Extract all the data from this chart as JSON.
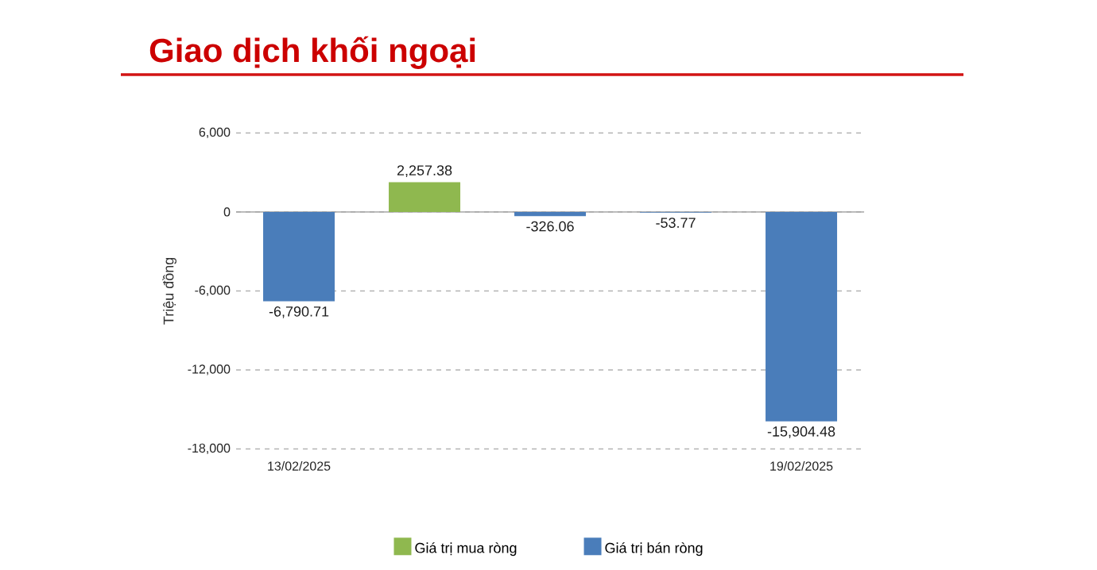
{
  "chart_data": {
    "type": "bar",
    "stacked": true,
    "title": "Giao dịch khối ngoại",
    "ylabel": "Triệu đồng",
    "categories": [
      "13/02/2025",
      null,
      null,
      null,
      "19/02/2025"
    ],
    "series": [
      {
        "name": "Giá trị mua ròng",
        "color": "#8fb84f",
        "values": [
          null,
          2257.38,
          null,
          null,
          null
        ],
        "value_labels": [
          null,
          "2,257.38",
          null,
          null,
          null
        ]
      },
      {
        "name": "Giá trị bán ròng",
        "color": "#4a7dba",
        "values": [
          -6790.71,
          null,
          -326.06,
          -53.77,
          -15904.48
        ],
        "value_labels": [
          "-6,790.71",
          null,
          "-326.06",
          "-53.77",
          "-15,904.48"
        ]
      }
    ],
    "ylim": [
      -18000,
      6000
    ],
    "yticks": [
      {
        "value": 6000,
        "label": "6,000"
      },
      0,
      {
        "value": -6000,
        "label": "-6,000"
      },
      {
        "value": -12000,
        "label": "-12,000"
      },
      {
        "value": -18000,
        "label": "-18,000"
      }
    ],
    "grid": "y",
    "legend": "bottom"
  }
}
